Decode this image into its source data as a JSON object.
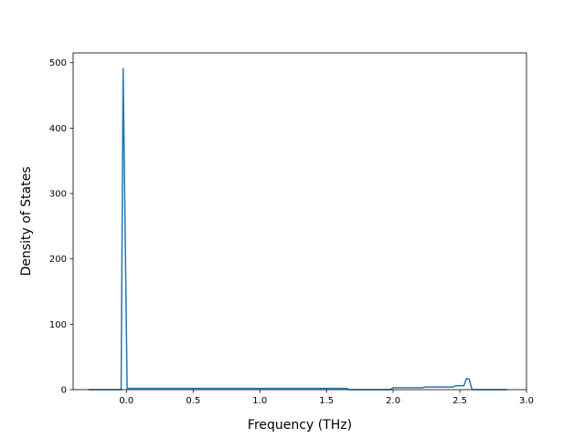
{
  "chart_data": {
    "type": "line",
    "title": "",
    "xlabel": "Frequency (THz)",
    "ylabel": "Density of States",
    "xlim": [
      -0.4,
      3.0
    ],
    "ylim": [
      0,
      515
    ],
    "xticks": [
      0.0,
      0.5,
      1.0,
      1.5,
      2.0,
      2.5,
      3.0
    ],
    "xtick_labels": [
      "0.0",
      "0.5",
      "1.0",
      "1.5",
      "2.0",
      "2.5",
      "3.0"
    ],
    "yticks": [
      0,
      100,
      200,
      300,
      400,
      500
    ],
    "ytick_labels": [
      "0",
      "100",
      "200",
      "300",
      "400",
      "500"
    ],
    "grid": false,
    "legend": "none",
    "series": [
      {
        "color": "#1f77b4",
        "x": [
          -0.28,
          -0.04,
          -0.025,
          0.005,
          0.02,
          0.5,
          1.0,
          1.5,
          1.65,
          1.67,
          1.98,
          2.0,
          2.22,
          2.24,
          2.45,
          2.47,
          2.53,
          2.55,
          2.57,
          2.59,
          2.6,
          2.85
        ],
        "y": [
          0,
          0,
          491,
          2,
          2,
          2,
          2,
          2,
          2,
          0,
          0,
          3,
          3,
          4,
          4,
          6,
          6,
          17,
          16,
          1,
          0,
          0
        ]
      }
    ]
  }
}
